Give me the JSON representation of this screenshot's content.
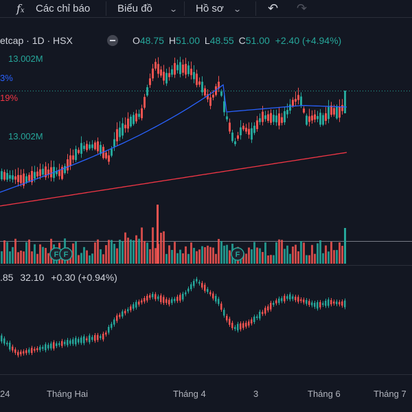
{
  "toolbar": {
    "indicators": "Các chỉ báo",
    "chart_type": "Biểu đồ",
    "profile": "Hồ sơ",
    "chevron": "⌄"
  },
  "legend": {
    "symbol": "etcap · 1D · HSX",
    "o_label": "O",
    "o_value": "48.75",
    "h_label": "H",
    "h_value": "51.00",
    "l_label": "L",
    "l_value": "48.55",
    "c_label": "C",
    "c_value": "51.00",
    "change": "+2.40 (+4.94%)"
  },
  "labels": {
    "vol_top": "13.002M",
    "vol_mid": "13.002M",
    "ma_blue": "3%",
    "ma_red": "19%"
  },
  "oscillator": {
    "value1": ".85",
    "value2": "32.10",
    "change": "+0.30 (+0.94%)"
  },
  "events": [
    "F",
    "F",
    "F"
  ],
  "xaxis": [
    "24",
    "Tháng Hai",
    "Tháng 4",
    "3",
    "Tháng 6",
    "Tháng 7"
  ],
  "colors": {
    "background": "#131722",
    "up": "#26a69a",
    "down": "#ef5350",
    "ma_short": "#2962ff",
    "ma_long": "#f23645",
    "text": "#d1d4dc"
  },
  "chart_data": {
    "type": "candlestick",
    "close_last": 51.0,
    "series": [
      {
        "name": "volume"
      }
    ]
  }
}
